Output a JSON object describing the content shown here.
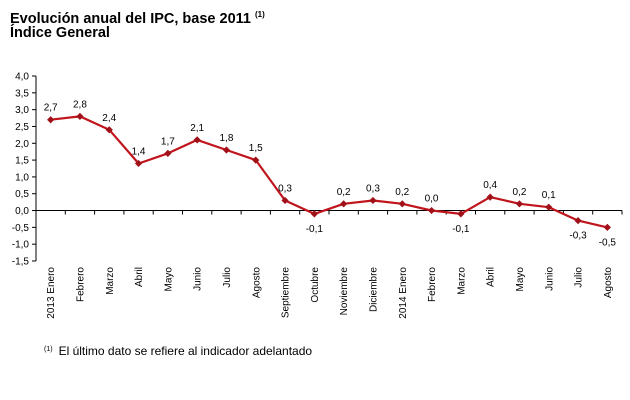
{
  "header": {
    "title": "Evolución anual del IPC, base 2011",
    "title_note": "(1)",
    "subtitle": "Índice General"
  },
  "footnote": {
    "marker": "(1)",
    "text": "El último dato se refiere al indicador adelantado"
  },
  "chart_data": {
    "type": "line",
    "title": "Evolución anual del IPC, base 2011",
    "subtitle": "Índice General",
    "categories": [
      "2013 Enero",
      "Febrero",
      "Marzo",
      "Abril",
      "Mayo",
      "Junio",
      "Julio",
      "Agosto",
      "Septiembre",
      "Octubre",
      "Noviembre",
      "Diciembre",
      "2014 Enero",
      "Febrero",
      "Marzo",
      "Abril",
      "Mayo",
      "Junio",
      "Julio",
      "Agosto"
    ],
    "values": [
      2.7,
      2.8,
      2.4,
      1.4,
      1.7,
      2.1,
      1.8,
      1.5,
      0.3,
      -0.1,
      0.2,
      0.3,
      0.2,
      0.0,
      -0.1,
      0.4,
      0.2,
      0.1,
      -0.3,
      -0.5
    ],
    "data_labels": [
      "2,7",
      "2,8",
      "2,4",
      "1,4",
      "1,7",
      "2,1",
      "1,8",
      "1,5",
      "0,3",
      "-0,1",
      "0,2",
      "0,3",
      "0,2",
      "0,0",
      "-0,1",
      "0,4",
      "0,2",
      "0,1",
      "-0,3",
      "-0,5"
    ],
    "label_position": [
      "above",
      "above",
      "above",
      "above",
      "above",
      "above",
      "above",
      "above",
      "above",
      "below",
      "above",
      "above",
      "above",
      "above",
      "below",
      "above",
      "above",
      "above",
      "below",
      "below"
    ],
    "y_ticks": [
      4.0,
      3.5,
      3.0,
      2.5,
      2.0,
      1.5,
      1.0,
      0.5,
      0.0,
      -0.5,
      -1.0,
      -1.5
    ],
    "y_tick_labels": [
      "4,0",
      "3,5",
      "3,0",
      "2,5",
      "2,0",
      "1,5",
      "1,0",
      "0,5",
      "0,0",
      "-0,5",
      "-1,0",
      "-1,5"
    ],
    "ylim": [
      -1.5,
      4.0
    ],
    "xlabel": "",
    "ylabel": "",
    "grid": false,
    "colors": {
      "line": "#C0151C",
      "marker": "#A01018",
      "axis": "#000000"
    }
  }
}
